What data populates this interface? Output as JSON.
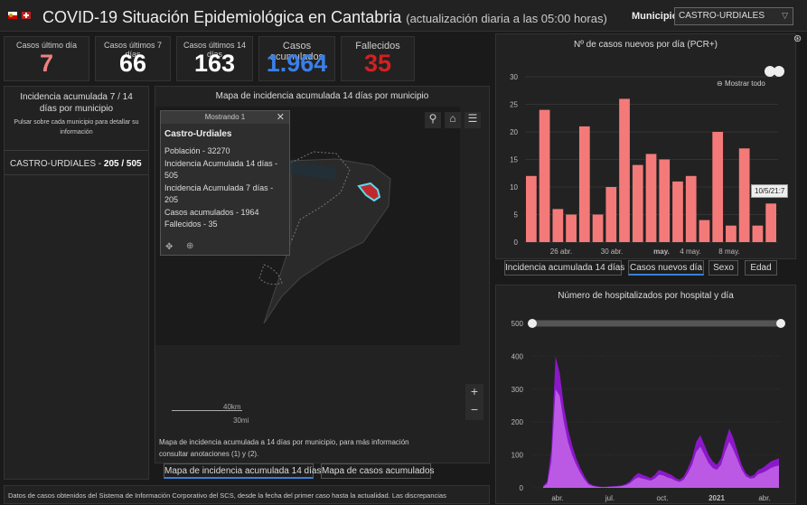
{
  "header": {
    "title": "COVID-19 Situación Epidemiológica en Cantabria",
    "subtitle": "(actualización diaria a las 05:00 horas)",
    "municipio_label": "Municipio",
    "municipio_value": "CASTRO-URDIALES"
  },
  "kpis": [
    {
      "label": "Casos último día",
      "value": "7",
      "color": "#f08080"
    },
    {
      "label": "Casos últimos 7 días",
      "value": "66",
      "color": "#ffffff"
    },
    {
      "label": "Casos últimos 14 días",
      "value": "163",
      "color": "#ffffff"
    },
    {
      "label": "Casos acumulados",
      "value": "1.964",
      "color": "#3a7fe8"
    },
    {
      "label": "Fallecidos",
      "value": "35",
      "color": "#d42020"
    }
  ],
  "incidence": {
    "title": "Incidencia acumulada 7 / 14 días por municipio",
    "hint": "Pulsar sobre cada municipio para detallar su información",
    "row_name": "CASTRO-URDIALES -",
    "row_value": "205 / 505"
  },
  "map": {
    "title": "Mapa de incidencia acumulada 14 días por municipio",
    "popup": {
      "header": "Mostrando 1",
      "name": "Castro-Urdiales",
      "lines": [
        "Población - 32270",
        "Incidencia Acumulada 14 días - 505",
        "Incidencia Acumulada 7 días - 205",
        "Casos acumulados - 1964",
        "Fallecidos - 35"
      ]
    },
    "scale_km": "40km",
    "scale_mi": "30mi",
    "note": "Mapa de incidencia acumulada a 14 días por municipio, para más información consultar anotaciones (1) y (2).",
    "tabs": [
      "Mapa de incidencia acumulada 14 días",
      "Mapa de casos acumulados"
    ]
  },
  "footer": {
    "text": "Datos de casos obtenidos del Sistema de Información Corporativo del SCS, desde la fecha del primer caso hasta la actualidad. Las discrepancias"
  },
  "charts": {
    "tabs": [
      "Incidencia acumulada 14 días",
      "Casos nuevos día",
      "Sexo",
      "Edad"
    ],
    "show_all": "Mostrar todo",
    "tooltip": "10/5/21:7"
  },
  "chart_data": [
    {
      "type": "bar",
      "title": "Nº de casos nuevos por día (PCR+)",
      "ylim": [
        0,
        30
      ],
      "yticks": [
        "0",
        "5",
        "10",
        "15",
        "20",
        "25",
        "30"
      ],
      "xtick_labels": [
        "26 abr.",
        "30 abr.",
        "may.",
        "4 may.",
        "8 may."
      ],
      "values": [
        12,
        24,
        6,
        5,
        21,
        5,
        10,
        26,
        14,
        16,
        15,
        11,
        12,
        4,
        20,
        3,
        17,
        3,
        7
      ],
      "color": "#f47a7a"
    },
    {
      "type": "area",
      "title": "Número de hospitalizados por hospital y día",
      "ylim": [
        0,
        500
      ],
      "yticks": [
        "0",
        "100",
        "200",
        "300",
        "400",
        "500"
      ],
      "xtick_labels": [
        "abr.",
        "jul.",
        "oct.",
        "2021",
        "abr."
      ],
      "series": [
        {
          "values": [
            5,
            20,
            120,
            400,
            350,
            250,
            180,
            130,
            90,
            60,
            35,
            15,
            8,
            5,
            3,
            3,
            4,
            5,
            6,
            8,
            12,
            20,
            35,
            45,
            40,
            35,
            30,
            40,
            55,
            50,
            45,
            40,
            30,
            25,
            35,
            60,
            90,
            140,
            160,
            130,
            100,
            80,
            70,
            90,
            140,
            180,
            150,
            110,
            70,
            45,
            35,
            40,
            55,
            60,
            70,
            80,
            85,
            90
          ]
        },
        {
          "values": [
            3,
            12,
            80,
            300,
            280,
            200,
            140,
            100,
            70,
            45,
            25,
            10,
            5,
            3,
            2,
            2,
            3,
            3,
            4,
            5,
            8,
            14,
            25,
            32,
            28,
            25,
            22,
            28,
            40,
            38,
            32,
            28,
            22,
            18,
            25,
            45,
            70,
            110,
            125,
            100,
            75,
            60,
            55,
            70,
            110,
            140,
            115,
            85,
            55,
            35,
            28,
            30,
            42,
            46,
            52,
            60,
            65,
            68
          ]
        }
      ],
      "colors": [
        "#8b18c8",
        "#c060e8"
      ]
    }
  ]
}
